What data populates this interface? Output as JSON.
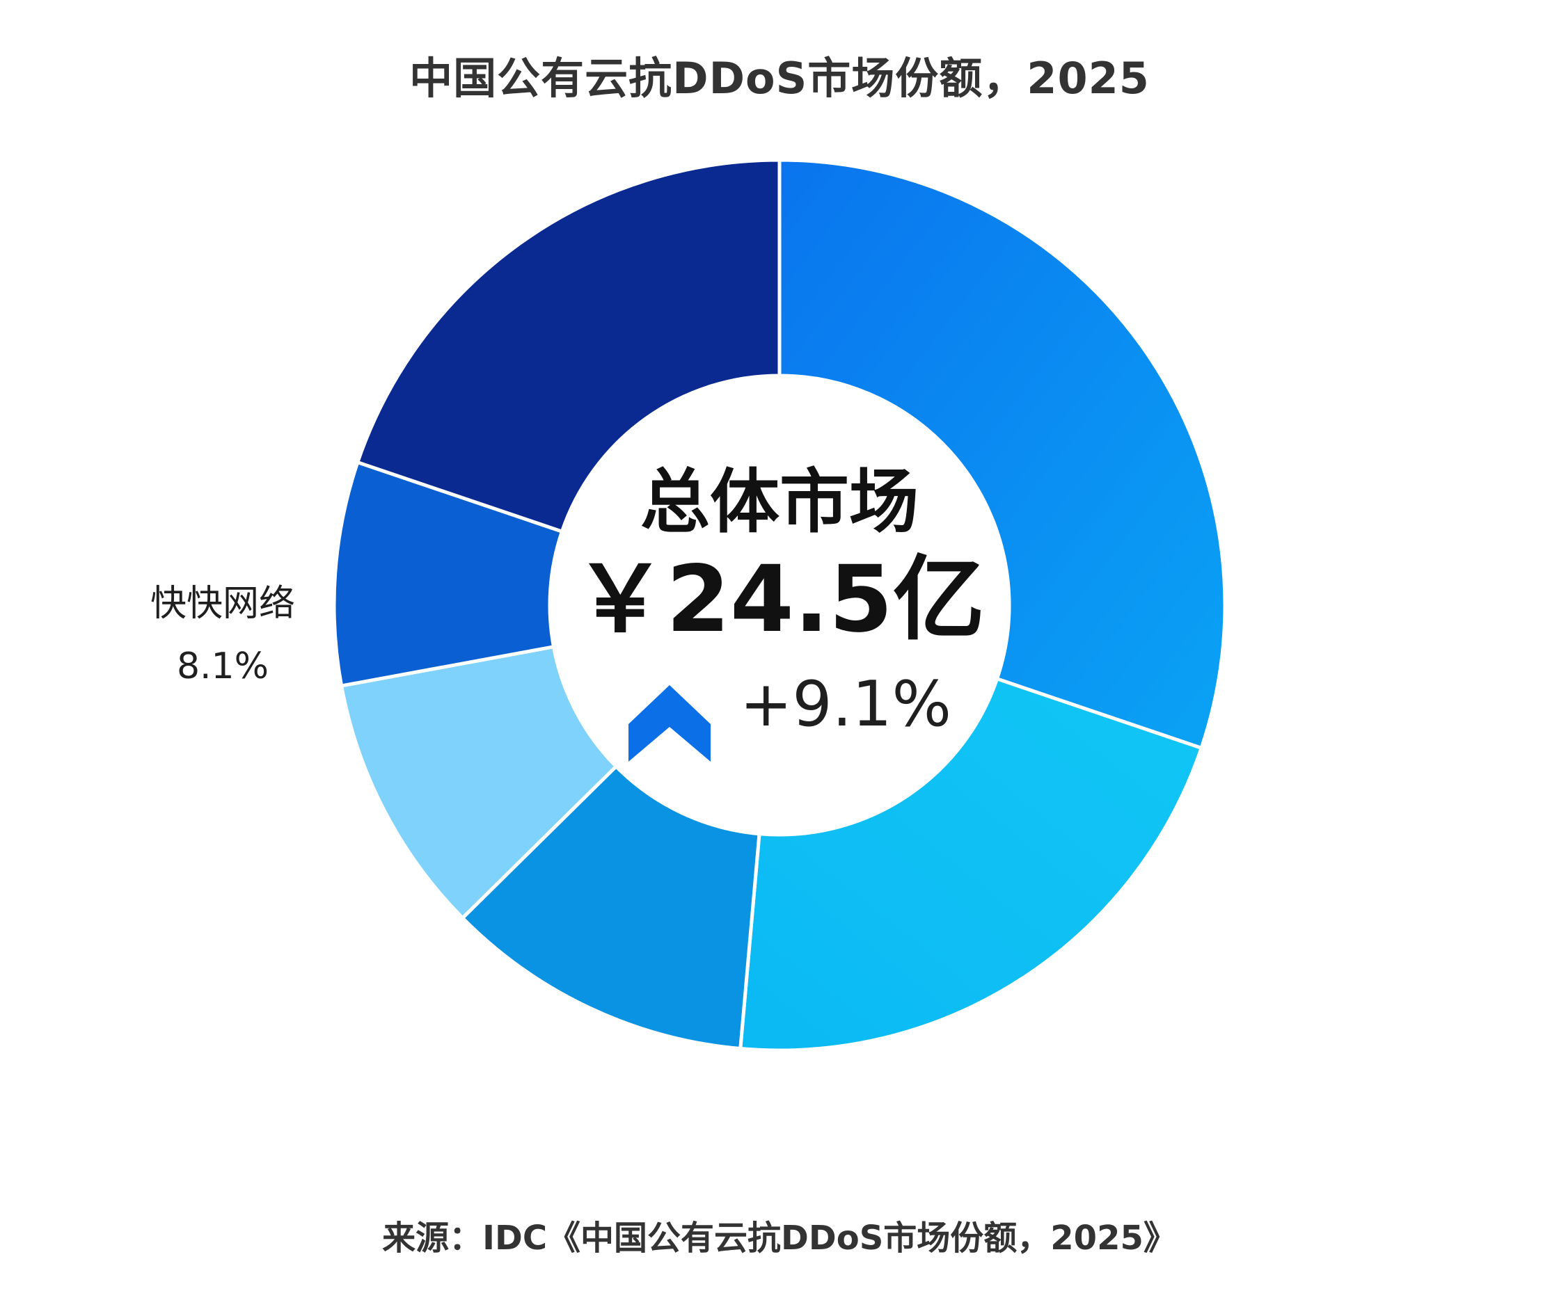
{
  "title": "中国公有云抗DDoS市场份额，2025",
  "center": {
    "label": "总体市场",
    "value": "￥24.5亿",
    "growth": "+9.1%",
    "growth_icon": "chevron-up-icon"
  },
  "source": "来源：IDC《中国公有云抗DDoS市场份额，2025》",
  "chart_data": {
    "type": "pie",
    "total": "￥24.5亿",
    "growth": "+9.1%",
    "slices": [
      {
        "label": "",
        "value": 30.2,
        "color": "#0b84f0"
      },
      {
        "label": "",
        "value": 21.2,
        "color": "#11c0f4"
      },
      {
        "label": "",
        "value": 11.2,
        "color": "#0a93e2"
      },
      {
        "label": "",
        "value": 9.5,
        "color": "#7ed2fb"
      },
      {
        "label": "快快网络",
        "value": 8.1,
        "value_label": "8.1%",
        "color": "#0a5fd2"
      },
      {
        "label": "",
        "value": 19.8,
        "color": "#0a2a92"
      }
    ]
  }
}
